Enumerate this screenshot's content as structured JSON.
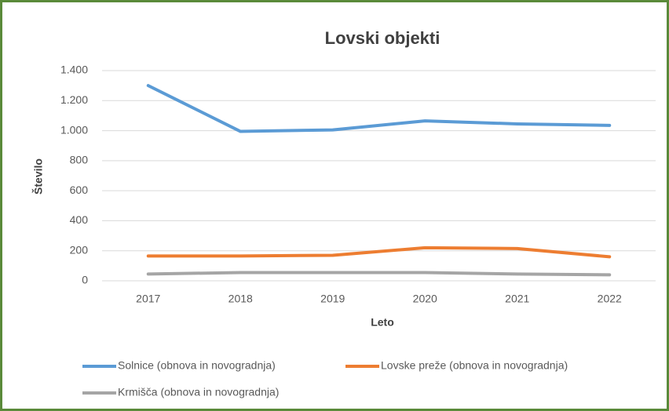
{
  "chart_data": {
    "type": "line",
    "title": "Lovski objekti",
    "x_label": "Leto",
    "y_label": "Število",
    "categories": [
      "2017",
      "2018",
      "2019",
      "2020",
      "2021",
      "2022"
    ],
    "series": [
      {
        "name": "Solnice (obnova in novogradnja)",
        "color": "#5b9bd5",
        "values": [
          1300,
          995,
          1005,
          1065,
          1045,
          1035
        ]
      },
      {
        "name": "Lovske preže (obnova in novogradnja)",
        "color": "#ed7d31",
        "values": [
          165,
          165,
          170,
          220,
          215,
          160
        ]
      },
      {
        "name": "Krmišča (obnova in novogradnja)",
        "color": "#a5a5a5",
        "values": [
          45,
          55,
          55,
          55,
          45,
          40
        ]
      }
    ],
    "ylim": [
      0,
      1400
    ],
    "yticks": [
      0,
      200,
      400,
      600,
      800,
      {
        "value": 1000,
        "label": "1.000"
      },
      {
        "value": 1200,
        "label": "1.200"
      },
      {
        "value": 1400,
        "label": "1.400"
      }
    ],
    "grid": true,
    "legend": "bottom"
  }
}
